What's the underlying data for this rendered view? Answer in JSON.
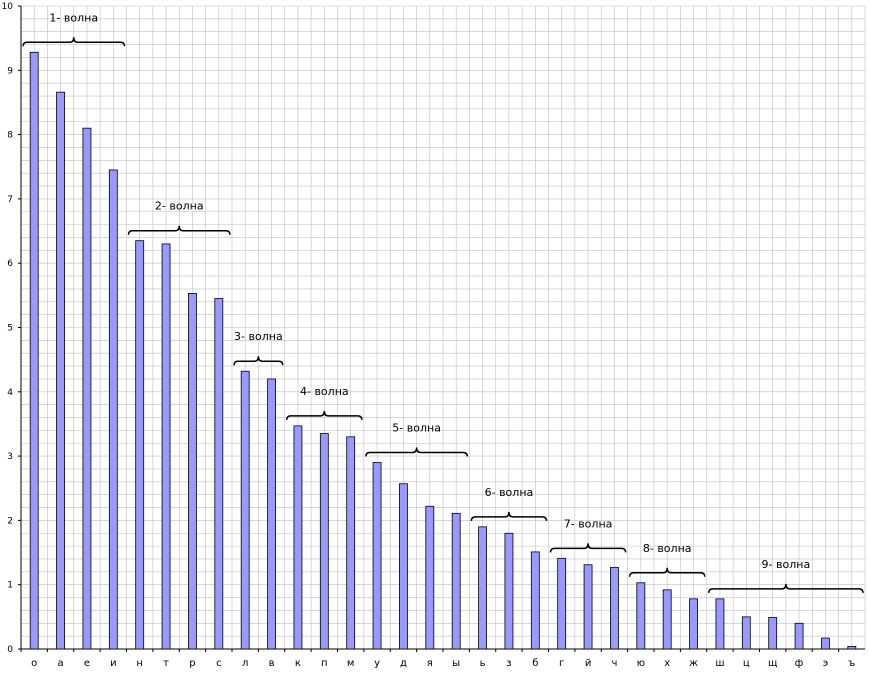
{
  "chart_data": {
    "type": "bar",
    "categories": [
      "о",
      "а",
      "е",
      "и",
      "н",
      "т",
      "р",
      "с",
      "л",
      "в",
      "к",
      "п",
      "м",
      "у",
      "д",
      "я",
      "ы",
      "ь",
      "з",
      "б",
      "г",
      "й",
      "ч",
      "ю",
      "х",
      "ж",
      "ш",
      "ц",
      "щ",
      "ф",
      "э",
      "ъ"
    ],
    "values": [
      9.28,
      8.66,
      8.1,
      7.45,
      6.35,
      6.3,
      5.53,
      5.45,
      4.32,
      4.2,
      3.47,
      3.35,
      3.3,
      2.9,
      2.57,
      2.22,
      2.11,
      1.9,
      1.8,
      1.51,
      1.41,
      1.31,
      1.27,
      1.03,
      0.92,
      0.78,
      0.78,
      0.5,
      0.49,
      0.4,
      0.17,
      0.04
    ],
    "yticks": [
      "0",
      "1",
      "2",
      "3",
      "4",
      "5",
      "6",
      "7",
      "8",
      "9",
      "10"
    ],
    "ylim": [
      0,
      10
    ],
    "grid": true,
    "colors": {
      "bar": "#9999ff",
      "bar_stroke": "#000000",
      "grid": "#c0c0c0",
      "brace": "#000000"
    },
    "annotations": [
      {
        "label": "1- волна",
        "from": 0,
        "to": 3
      },
      {
        "label": "2- волна",
        "from": 4,
        "to": 7
      },
      {
        "label": "3- волна",
        "from": 8,
        "to": 9
      },
      {
        "label": "4- волна",
        "from": 10,
        "to": 12
      },
      {
        "label": "5- волна",
        "from": 13,
        "to": 16
      },
      {
        "label": "6- волна",
        "from": 17,
        "to": 19
      },
      {
        "label": "7- волна",
        "from": 20,
        "to": 22
      },
      {
        "label": "8- волна",
        "from": 23,
        "to": 25
      },
      {
        "label": "9- волна",
        "from": 26,
        "to": 31
      }
    ]
  }
}
